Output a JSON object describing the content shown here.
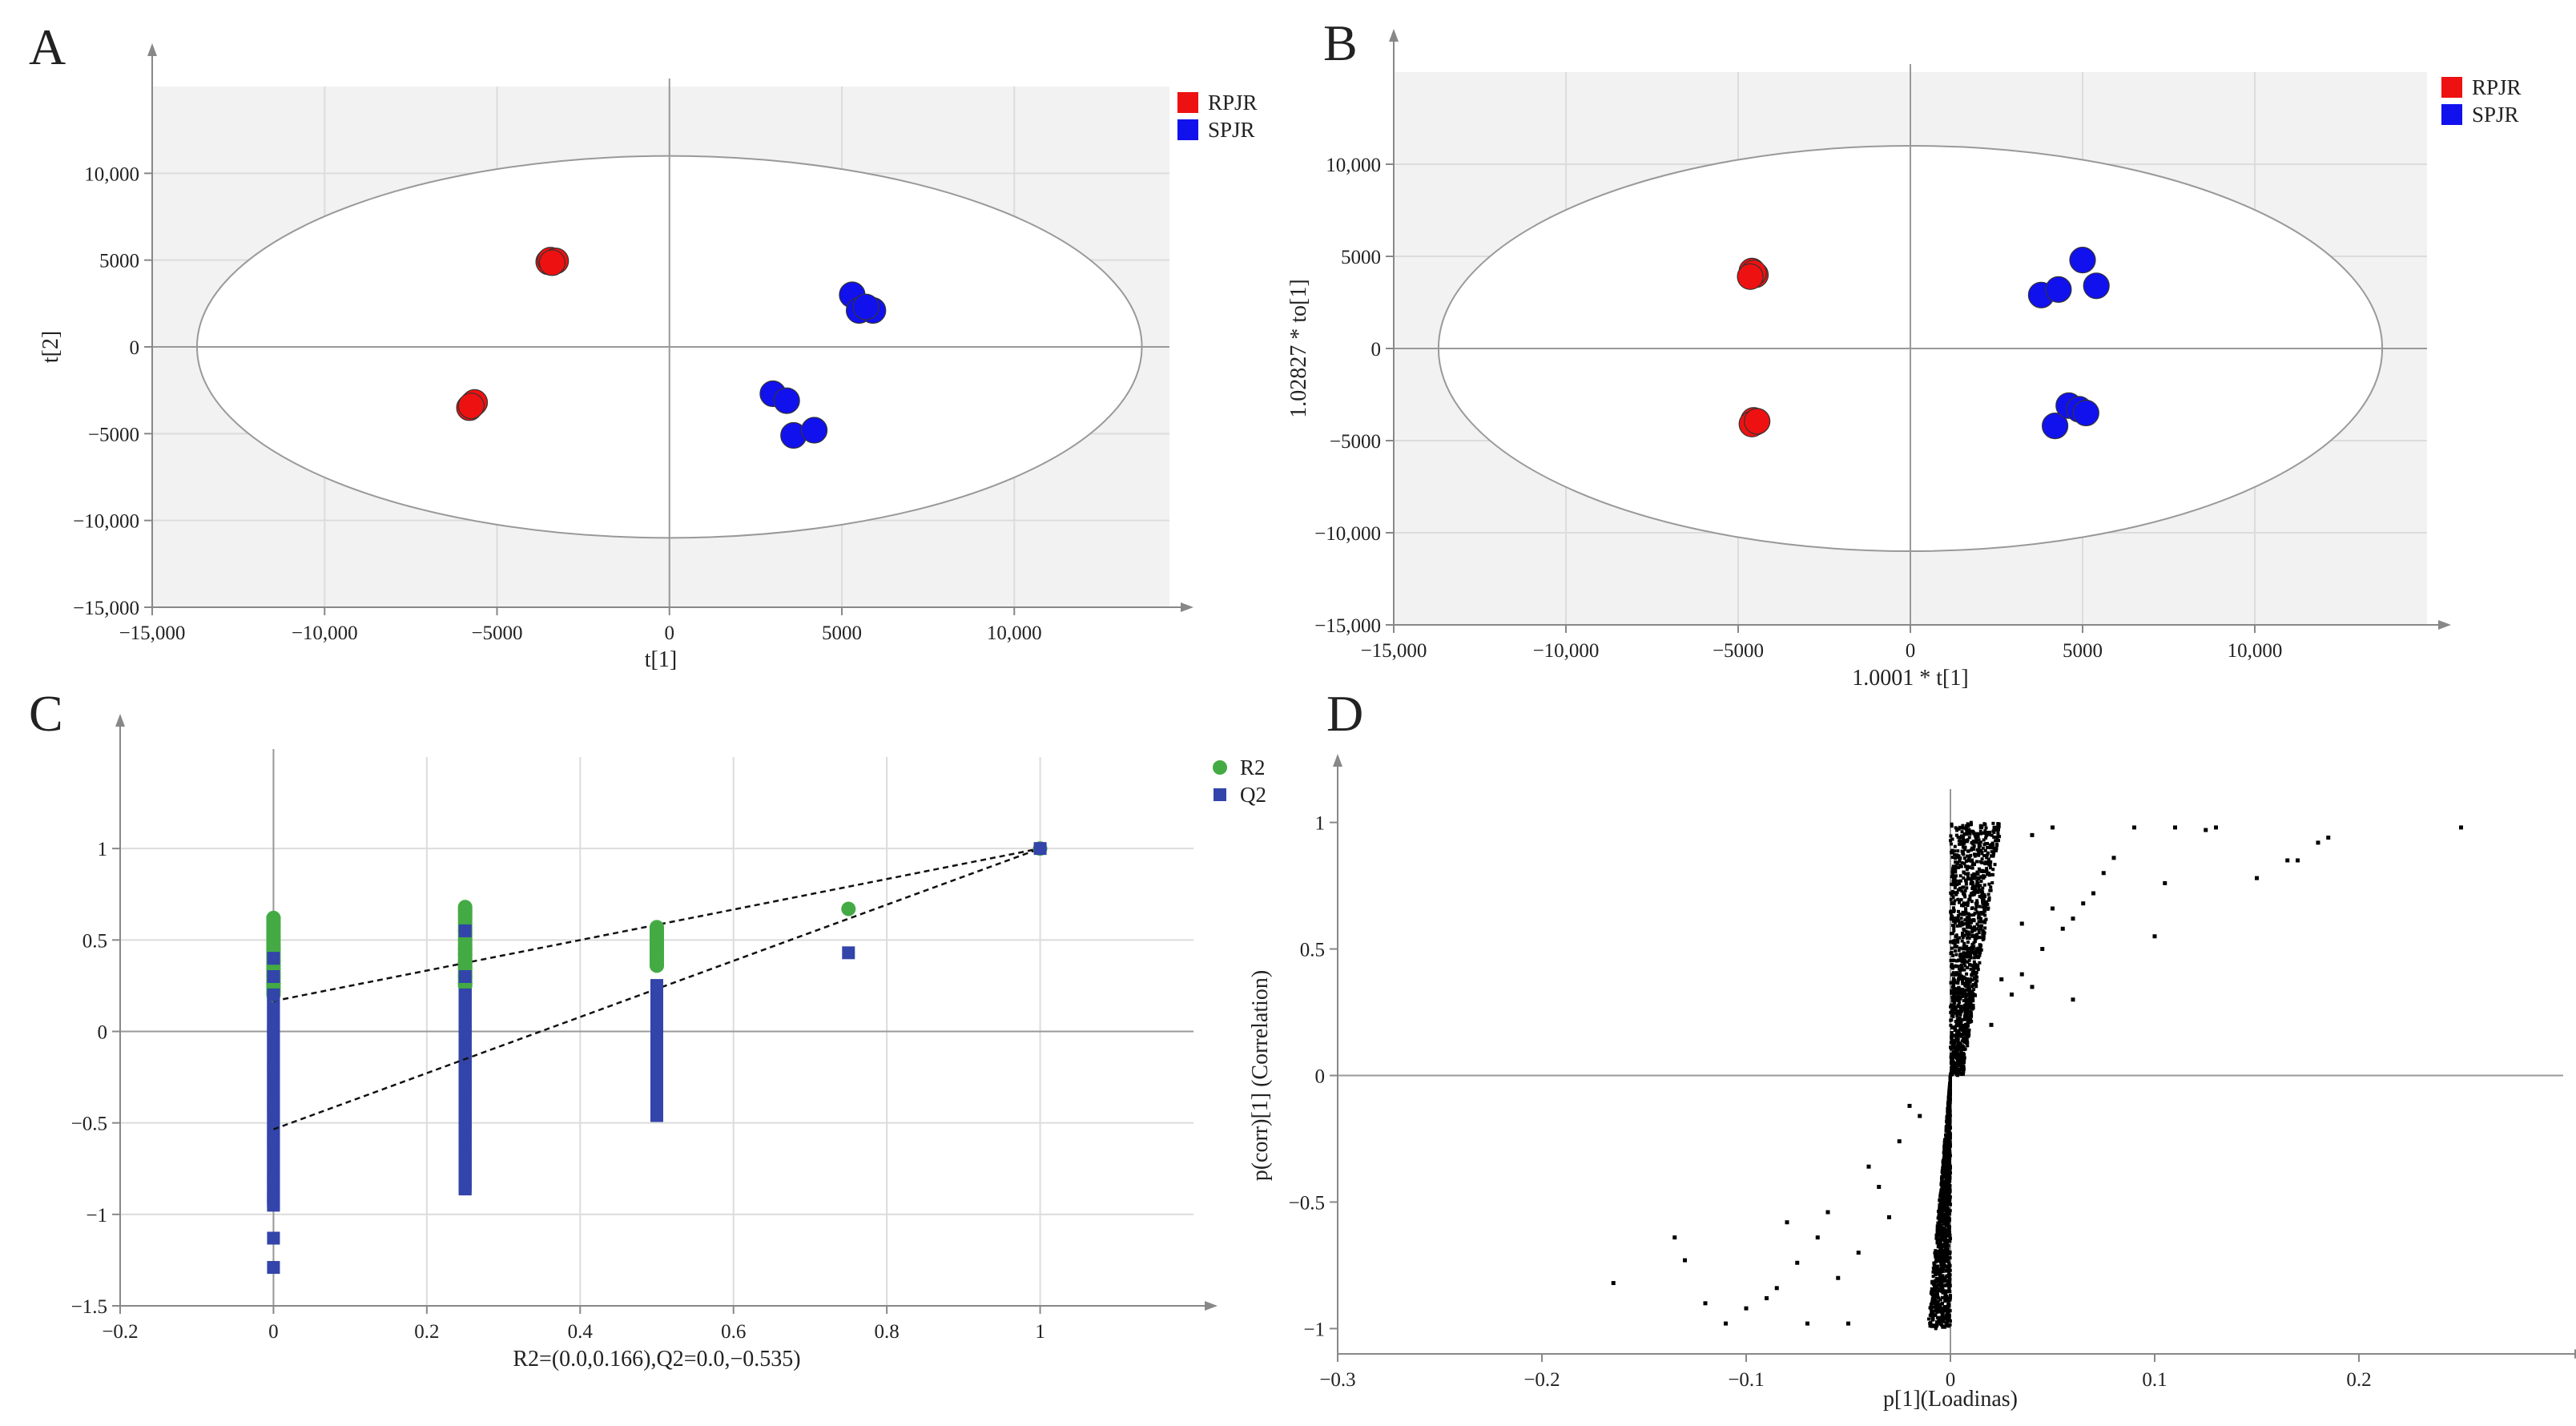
{
  "chart_data": [
    {
      "id": "A",
      "type": "scatter",
      "panel_label": "A",
      "xlabel": "t[1]",
      "ylabel": "t[2]",
      "xlim": [
        -15000,
        14500
      ],
      "ylim": [
        -15000,
        15000
      ],
      "xticks": [
        -15000,
        -10000,
        -5000,
        0,
        5000,
        10000
      ],
      "xtick_labels": [
        "−15,000",
        "−10,000",
        "−5000",
        "0",
        "5000",
        "10,000"
      ],
      "yticks": [
        -15000,
        -10000,
        -5000,
        0,
        5000,
        10000
      ],
      "ytick_labels": [
        "−15,000",
        "−10,000",
        "−5000",
        "0",
        "5000",
        "10,000"
      ],
      "grid": true,
      "background": "#f2f2f2",
      "legend_position": "top-right",
      "ellipse": {
        "rx": 13700,
        "ry": 11000
      },
      "series": [
        {
          "name": "RPJR",
          "color": "#ee1111",
          "marker": "circle",
          "x": [
            -3500,
            -3450,
            -3300,
            -3400,
            -5700,
            -5650,
            -5800,
            -5750
          ],
          "y": [
            4900,
            5000,
            4950,
            4850,
            -3300,
            -3200,
            -3500,
            -3400
          ]
        },
        {
          "name": "SPJR",
          "color": "#1111ee",
          "marker": "circle",
          "x": [
            5300,
            5500,
            5900,
            5700,
            3000,
            3400,
            3600,
            4200
          ],
          "y": [
            3000,
            2100,
            2100,
            2300,
            -2700,
            -3100,
            -5100,
            -4800
          ]
        }
      ]
    },
    {
      "id": "B",
      "type": "scatter",
      "panel_label": "B",
      "xlabel": "1.0001 * t[1]",
      "ylabel": "1.02827 * to[1]",
      "xlim": [
        -15000,
        15000
      ],
      "ylim": [
        -15000,
        15000
      ],
      "xticks": [
        -15000,
        -10000,
        -5000,
        0,
        5000,
        10000
      ],
      "xtick_labels": [
        "−15,000",
        "−10,000",
        "−5000",
        "0",
        "5000",
        "10,000"
      ],
      "yticks": [
        -15000,
        -10000,
        -5000,
        0,
        5000,
        10000
      ],
      "ytick_labels": [
        "−15,000",
        "−10,000",
        "−5000",
        "0",
        "5000",
        "10,000"
      ],
      "grid": true,
      "background": "#f2f2f2",
      "legend_position": "top-right",
      "ellipse": {
        "rx": 13700,
        "ry": 11000
      },
      "series": [
        {
          "name": "RPJR",
          "color": "#ee1111",
          "marker": "circle",
          "x": [
            -4600,
            -4500,
            -4550,
            -4650,
            -4500,
            -4550,
            -4600,
            -4450
          ],
          "y": [
            4200,
            4000,
            4100,
            3900,
            -4000,
            -3900,
            -4100,
            -3950
          ]
        },
        {
          "name": "SPJR",
          "color": "#1111ee",
          "marker": "circle",
          "x": [
            3800,
            4300,
            5000,
            5400,
            4200,
            4600,
            4900,
            5100
          ],
          "y": [
            2900,
            3200,
            4800,
            3400,
            -4200,
            -3100,
            -3300,
            -3500
          ]
        }
      ]
    },
    {
      "id": "C",
      "type": "scatter",
      "panel_label": "C",
      "xlabel": "R2=(0.0,0.166),Q2=0.0,−0.535)",
      "ylabel": "",
      "xlim": [
        -0.2,
        1.2
      ],
      "ylim": [
        -1.5,
        1.5
      ],
      "xticks": [
        -0.2,
        0,
        0.2,
        0.4,
        0.6,
        0.8,
        1
      ],
      "xtick_labels": [
        "−0.2",
        "0",
        "0.2",
        "0.4",
        "0.6",
        "0.8",
        "1"
      ],
      "yticks": [
        -1.5,
        -1,
        -0.5,
        0,
        0.5,
        1
      ],
      "ytick_labels": [
        "−1.5",
        "−1",
        "−0.5",
        "0",
        "0.5",
        "1"
      ],
      "grid": true,
      "legend_position": "top-right",
      "series": [
        {
          "name": "R2",
          "color": "#44aa44",
          "marker": "circle",
          "x": [
            0,
            0,
            0,
            0,
            0,
            0,
            0,
            0,
            0.25,
            0.25,
            0.25,
            0.25,
            0.25,
            0.25,
            0.25,
            0.25,
            0.25,
            0.5,
            0.5,
            0.5,
            0.5,
            0.5,
            0.5,
            0.5,
            0.75,
            1
          ],
          "y": [
            0.62,
            0.58,
            0.52,
            0.45,
            0.38,
            0.3,
            0.26,
            0.22,
            0.68,
            0.66,
            0.55,
            0.45,
            0.42,
            0.38,
            0.35,
            0.3,
            0.26,
            0.57,
            0.55,
            0.52,
            0.48,
            0.44,
            0.4,
            0.36,
            0.67,
            1.0
          ]
        },
        {
          "name": "Q2",
          "color": "#3344aa",
          "marker": "square",
          "x": [
            0,
            0,
            0,
            0,
            0,
            0,
            0,
            0,
            0,
            0,
            0,
            0,
            0.25,
            0.25,
            0.25,
            0.25,
            0.25,
            0.25,
            0.25,
            0.25,
            0.25,
            0.5,
            0.5,
            0.5,
            0.5,
            0.5,
            0.5,
            0.5,
            0.75,
            1
          ],
          "y": [
            0.4,
            0.2,
            0.0,
            -0.2,
            -0.4,
            -0.6,
            -0.8,
            -0.9,
            -0.95,
            -1.13,
            -1.29,
            0.3,
            0.55,
            0.3,
            0.0,
            -0.3,
            -0.5,
            -0.7,
            -0.78,
            -0.86,
            0.2,
            0.25,
            0.1,
            -0.1,
            -0.2,
            -0.3,
            -0.4,
            -0.46,
            0.43,
            1.0
          ]
        }
      ],
      "dense_ranges": [
        {
          "series": "Q2",
          "x": 0,
          "from": -0.95,
          "to": 0.4
        },
        {
          "series": "Q2",
          "x": 0.25,
          "from": -0.87,
          "to": 0.56
        },
        {
          "series": "Q2",
          "x": 0.5,
          "from": -0.46,
          "to": 0.26
        },
        {
          "series": "R2",
          "x": 0,
          "from": 0.2,
          "to": 0.62
        },
        {
          "series": "R2",
          "x": 0.25,
          "from": 0.25,
          "to": 0.68
        },
        {
          "series": "R2",
          "x": 0.5,
          "from": 0.36,
          "to": 0.57
        }
      ],
      "regression_lines": [
        {
          "series": "R2",
          "intercept": 0.166,
          "slope_to": [
            1,
            1.0
          ]
        },
        {
          "series": "Q2",
          "intercept": -0.535,
          "slope_to": [
            1,
            1.0
          ]
        }
      ]
    },
    {
      "id": "D",
      "type": "scatter",
      "panel_label": "D",
      "xlabel": "p[1](Loadinas)",
      "ylabel": "p(corr)[1] (Correlation)",
      "xlim": [
        -0.3,
        0.3
      ],
      "ylim": [
        -1.1,
        1.1
      ],
      "xticks": [
        -0.3,
        -0.2,
        -0.1,
        0,
        0.1,
        0.2
      ],
      "xtick_labels": [
        "−0.3",
        "−0.2",
        "−0.1",
        "0",
        "0.1",
        "0.2"
      ],
      "yticks": [
        -1,
        -0.5,
        0,
        0.5,
        1
      ],
      "ytick_labels": [
        "−1",
        "−0.5",
        "0",
        "0.5",
        "1"
      ],
      "grid": false,
      "series": [
        {
          "name": "",
          "color": "#000000",
          "marker": "dot",
          "x": [
            0.25,
            0.185,
            0.18,
            0.17,
            0.165,
            0.15,
            0.13,
            0.125,
            0.11,
            0.1,
            0.105,
            0.09,
            0.08,
            0.075,
            0.07,
            0.065,
            0.06,
            0.055,
            0.05,
            0.045,
            0.04,
            0.035,
            0.03,
            0.025,
            0.02,
            0.06,
            0.05,
            0.04,
            0.035,
            -0.165,
            -0.135,
            -0.13,
            -0.12,
            -0.11,
            -0.1,
            -0.09,
            -0.085,
            -0.08,
            -0.075,
            -0.07,
            -0.065,
            -0.06,
            -0.055,
            -0.05,
            -0.045,
            -0.04,
            -0.035,
            -0.03,
            -0.025,
            -0.02,
            -0.015
          ],
          "y": [
            0.98,
            0.94,
            0.92,
            0.85,
            0.85,
            0.78,
            0.98,
            0.97,
            0.98,
            0.55,
            0.76,
            0.98,
            0.86,
            0.8,
            0.72,
            0.68,
            0.62,
            0.58,
            0.66,
            0.5,
            0.35,
            0.4,
            0.32,
            0.38,
            0.2,
            0.3,
            0.98,
            0.95,
            0.6,
            -0.82,
            -0.64,
            -0.73,
            -0.9,
            -0.98,
            -0.92,
            -0.88,
            -0.84,
            -0.58,
            -0.74,
            -0.98,
            -0.64,
            -0.54,
            -0.8,
            -0.98,
            -0.7,
            -0.36,
            -0.44,
            -0.56,
            -0.26,
            -0.12,
            -0.16
          ]
        }
      ],
      "dense_band": {
        "x_range": [
          -0.005,
          0.025
        ],
        "y_range": [
          -1,
          1
        ]
      }
    }
  ]
}
